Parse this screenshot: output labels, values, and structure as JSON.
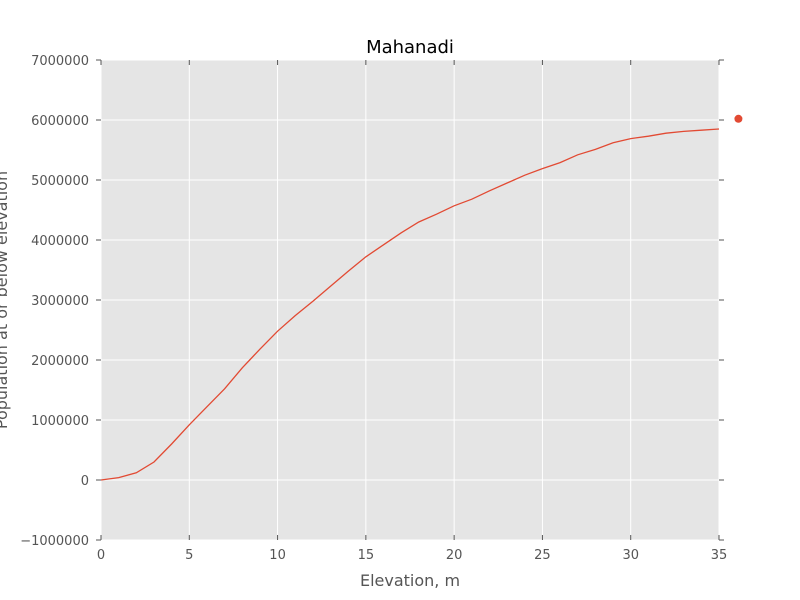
{
  "chart_data": {
    "type": "line",
    "title": "Mahanadi",
    "xlabel": "Elevation, m",
    "ylabel": "Population at or below elevation",
    "xlim": [
      0,
      35
    ],
    "ylim": [
      -1000000,
      7000000
    ],
    "x_ticks": [
      0,
      5,
      10,
      15,
      20,
      25,
      30,
      35
    ],
    "y_ticks": [
      -1000000,
      0,
      1000000,
      2000000,
      3000000,
      4000000,
      5000000,
      6000000,
      7000000
    ],
    "x_tick_labels": [
      "0",
      "5",
      "10",
      "15",
      "20",
      "25",
      "30",
      "35"
    ],
    "y_tick_labels": [
      "−1000000",
      "0",
      "1000000",
      "2000000",
      "3000000",
      "4000000",
      "5000000",
      "6000000",
      "7000000"
    ],
    "grid": true,
    "series": [
      {
        "color": "#e24a33",
        "x": [
          0,
          1,
          2,
          3,
          4,
          5,
          6,
          7,
          8,
          9,
          10,
          11,
          12,
          13,
          14,
          15,
          16,
          17,
          18,
          19,
          20,
          21,
          22,
          23,
          24,
          25,
          26,
          27,
          28,
          29,
          30,
          31,
          32,
          33,
          34,
          35
        ],
        "y": [
          0,
          40000,
          120000,
          300000,
          600000,
          920000,
          1220000,
          1520000,
          1870000,
          2180000,
          2480000,
          2740000,
          2980000,
          3230000,
          3480000,
          3720000,
          3920000,
          4120000,
          4300000,
          4430000,
          4570000,
          4680000,
          4820000,
          4950000,
          5080000,
          5190000,
          5290000,
          5420000,
          5510000,
          5620000,
          5690000,
          5730000,
          5780000,
          5810000,
          5830000,
          5850000
        ]
      }
    ],
    "extra_points": [
      {
        "x": 36.1,
        "y": 6020000,
        "color": "#e24a33"
      }
    ]
  }
}
